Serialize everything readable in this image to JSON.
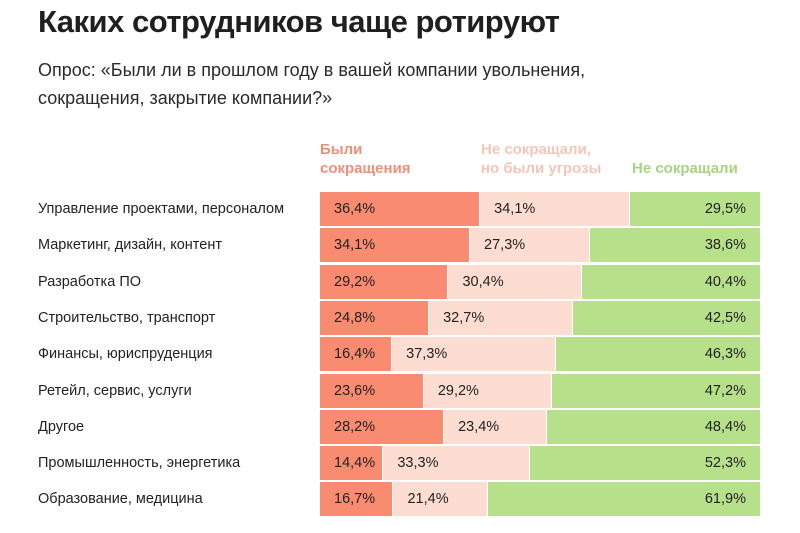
{
  "chart_data": {
    "type": "bar",
    "stacked": true,
    "orientation": "horizontal",
    "title": "Каких сотрудников чаще ротируют",
    "subtitle": "Опрос: «Были ли в прошлом году в вашей компании увольнения, сокращения, закрытие компании?»",
    "categories": [
      "Управление проектами, персоналом",
      "Маркетинг, дизайн, контент",
      "Разработка ПО",
      "Строительство, транспорт",
      "Финансы, юриспруденция",
      "Ретейл, сервис, услуги",
      "Другое",
      "Промышленность, энергетика",
      "Образование, медицина"
    ],
    "series": [
      {
        "name": "Были сокращения",
        "color": "#F98B70",
        "legend_color": "#EC9079",
        "values": [
          36.4,
          34.1,
          29.2,
          24.8,
          16.4,
          23.6,
          28.2,
          14.4,
          16.7
        ],
        "labels": [
          "36,4%",
          "34,1%",
          "29,2%",
          "24,8%",
          "16,4%",
          "23,6%",
          "28,2%",
          "14,4%",
          "16,7%"
        ]
      },
      {
        "name": "Не сокращали, но были угрозы",
        "color": "#FDDDD2",
        "legend_color": "#F4C6B8",
        "values": [
          34.1,
          27.3,
          30.4,
          32.7,
          37.3,
          29.2,
          23.4,
          33.3,
          21.4
        ],
        "labels": [
          "34,1%",
          "27,3%",
          "30,4%",
          "32,7%",
          "37,3%",
          "29,2%",
          "23,4%",
          "33,3%",
          "21,4%"
        ]
      },
      {
        "name": "Не сокращали",
        "color": "#B6E08A",
        "legend_color": "#A8D382",
        "values": [
          29.5,
          38.6,
          40.4,
          42.5,
          46.3,
          47.2,
          48.4,
          52.3,
          61.9
        ],
        "labels": [
          "29,5%",
          "38,6%",
          "40,4%",
          "42,5%",
          "46,3%",
          "47,2%",
          "48,4%",
          "52,3%",
          "61,9%"
        ]
      }
    ],
    "xlim": [
      0,
      100
    ],
    "legend_placement": "top"
  }
}
